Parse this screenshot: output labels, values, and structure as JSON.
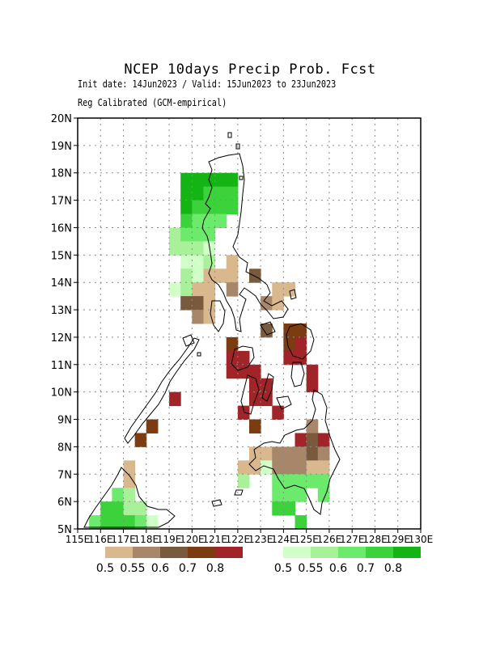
{
  "title": "NCEP 10days Precip Prob. Fcst",
  "subtitle1": "Init date: 14Jun2023 / Valid: 15Jun2023 to 23Jun2023",
  "subtitle2": "Reg Calibrated (GCM-empirical)",
  "axes": {
    "lon_ticks": [
      "115E",
      "116E",
      "117E",
      "118E",
      "119E",
      "120E",
      "121E",
      "122E",
      "123E",
      "124E",
      "125E",
      "126E",
      "127E",
      "128E",
      "129E",
      "130E"
    ],
    "lat_ticks": [
      "5N",
      "6N",
      "7N",
      "8N",
      "9N",
      "10N",
      "11N",
      "12N",
      "13N",
      "14N",
      "15N",
      "16N",
      "17N",
      "18N",
      "19N",
      "20N"
    ],
    "lon_range": [
      115,
      130
    ],
    "lat_range": [
      5,
      20
    ],
    "grid": true
  },
  "legend": {
    "dry": {
      "colors": [
        "#d8b88c",
        "#a8866a",
        "#7a5a3c",
        "#7a3c10",
        "#a02428"
      ],
      "labels": [
        "0.5",
        "0.55",
        "0.6",
        "0.7",
        "0.8"
      ]
    },
    "wet": {
      "colors": [
        "#d0ffc8",
        "#a8f09a",
        "#6cea6c",
        "#3cd23c",
        "#14b414"
      ],
      "labels": [
        "0.5",
        "0.55",
        "0.6",
        "0.7",
        "0.8"
      ]
    }
  },
  "cells": [
    {
      "lon": 119.75,
      "lat": 17.75,
      "c": "w5"
    },
    {
      "lon": 120.25,
      "lat": 17.75,
      "c": "w5"
    },
    {
      "lon": 120.75,
      "lat": 17.75,
      "c": "w5"
    },
    {
      "lon": 121.25,
      "lat": 17.75,
      "c": "w5"
    },
    {
      "lon": 121.75,
      "lat": 17.75,
      "c": "w5"
    },
    {
      "lon": 119.75,
      "lat": 17.25,
      "c": "w5"
    },
    {
      "lon": 120.25,
      "lat": 17.25,
      "c": "w5"
    },
    {
      "lon": 120.75,
      "lat": 17.25,
      "c": "w4"
    },
    {
      "lon": 121.25,
      "lat": 17.25,
      "c": "w4"
    },
    {
      "lon": 121.75,
      "lat": 17.25,
      "c": "w4"
    },
    {
      "lon": 119.75,
      "lat": 16.75,
      "c": "w5"
    },
    {
      "lon": 120.25,
      "lat": 16.75,
      "c": "w4"
    },
    {
      "lon": 120.75,
      "lat": 16.75,
      "c": "w4"
    },
    {
      "lon": 121.25,
      "lat": 16.75,
      "c": "w4"
    },
    {
      "lon": 121.75,
      "lat": 16.75,
      "c": "w4"
    },
    {
      "lon": 119.75,
      "lat": 16.25,
      "c": "w4"
    },
    {
      "lon": 120.25,
      "lat": 16.25,
      "c": "w3"
    },
    {
      "lon": 120.75,
      "lat": 16.25,
      "c": "w3"
    },
    {
      "lon": 121.25,
      "lat": 16.25,
      "c": "w3"
    },
    {
      "lon": 119.25,
      "lat": 15.75,
      "c": "w2"
    },
    {
      "lon": 119.75,
      "lat": 15.75,
      "c": "w3"
    },
    {
      "lon": 120.25,
      "lat": 15.75,
      "c": "w3"
    },
    {
      "lon": 120.75,
      "lat": 15.75,
      "c": "w3"
    },
    {
      "lon": 119.25,
      "lat": 15.25,
      "c": "w2"
    },
    {
      "lon": 119.75,
      "lat": 15.25,
      "c": "w2"
    },
    {
      "lon": 120.25,
      "lat": 15.25,
      "c": "w2"
    },
    {
      "lon": 120.75,
      "lat": 15.25,
      "c": "w1"
    },
    {
      "lon": 119.75,
      "lat": 14.75,
      "c": "w1"
    },
    {
      "lon": 120.25,
      "lat": 14.75,
      "c": "w1"
    },
    {
      "lon": 120.75,
      "lat": 14.75,
      "c": "w2"
    },
    {
      "lon": 121.75,
      "lat": 14.75,
      "c": "d1"
    },
    {
      "lon": 119.75,
      "lat": 14.25,
      "c": "w2"
    },
    {
      "lon": 120.25,
      "lat": 14.25,
      "c": "w1"
    },
    {
      "lon": 120.75,
      "lat": 14.25,
      "c": "d1"
    },
    {
      "lon": 121.25,
      "lat": 14.25,
      "c": "d1"
    },
    {
      "lon": 121.75,
      "lat": 14.25,
      "c": "d1"
    },
    {
      "lon": 122.75,
      "lat": 14.25,
      "c": "d3"
    },
    {
      "lon": 119.25,
      "lat": 13.75,
      "c": "w1"
    },
    {
      "lon": 119.75,
      "lat": 13.75,
      "c": "w2"
    },
    {
      "lon": 120.25,
      "lat": 13.75,
      "c": "d1"
    },
    {
      "lon": 120.75,
      "lat": 13.75,
      "c": "d1"
    },
    {
      "lon": 121.75,
      "lat": 13.75,
      "c": "d2"
    },
    {
      "lon": 123.75,
      "lat": 13.75,
      "c": "d1"
    },
    {
      "lon": 124.25,
      "lat": 13.75,
      "c": "d1"
    },
    {
      "lon": 119.75,
      "lat": 13.25,
      "c": "d3"
    },
    {
      "lon": 120.25,
      "lat": 13.25,
      "c": "d3"
    },
    {
      "lon": 120.75,
      "lat": 13.25,
      "c": "d1"
    },
    {
      "lon": 123.25,
      "lat": 13.25,
      "c": "d2"
    },
    {
      "lon": 123.75,
      "lat": 13.25,
      "c": "d1"
    },
    {
      "lon": 120.25,
      "lat": 12.75,
      "c": "d2"
    },
    {
      "lon": 120.75,
      "lat": 12.75,
      "c": "d1"
    },
    {
      "lon": 123.25,
      "lat": 12.25,
      "c": "d3"
    },
    {
      "lon": 124.25,
      "lat": 12.25,
      "c": "d4"
    },
    {
      "lon": 124.75,
      "lat": 12.25,
      "c": "d4"
    },
    {
      "lon": 121.75,
      "lat": 11.75,
      "c": "d4"
    },
    {
      "lon": 124.25,
      "lat": 11.75,
      "c": "d4"
    },
    {
      "lon": 124.75,
      "lat": 11.75,
      "c": "d5"
    },
    {
      "lon": 121.75,
      "lat": 11.25,
      "c": "d5"
    },
    {
      "lon": 122.25,
      "lat": 11.25,
      "c": "d5"
    },
    {
      "lon": 124.25,
      "lat": 11.25,
      "c": "d5"
    },
    {
      "lon": 124.75,
      "lat": 11.25,
      "c": "d5"
    },
    {
      "lon": 121.75,
      "lat": 10.75,
      "c": "d5"
    },
    {
      "lon": 122.25,
      "lat": 10.75,
      "c": "d5"
    },
    {
      "lon": 122.75,
      "lat": 10.75,
      "c": "d5"
    },
    {
      "lon": 125.25,
      "lat": 10.75,
      "c": "d5"
    },
    {
      "lon": 122.75,
      "lat": 10.25,
      "c": "d5"
    },
    {
      "lon": 123.25,
      "lat": 10.25,
      "c": "d5"
    },
    {
      "lon": 125.25,
      "lat": 10.25,
      "c": "d5"
    },
    {
      "lon": 119.25,
      "lat": 9.75,
      "c": "d5"
    },
    {
      "lon": 122.75,
      "lat": 9.75,
      "c": "d5"
    },
    {
      "lon": 123.25,
      "lat": 9.75,
      "c": "d5"
    },
    {
      "lon": 122.25,
      "lat": 9.25,
      "c": "d5"
    },
    {
      "lon": 123.75,
      "lat": 9.25,
      "c": "d5"
    },
    {
      "lon": 118.25,
      "lat": 8.75,
      "c": "d4"
    },
    {
      "lon": 122.75,
      "lat": 8.75,
      "c": "d4"
    },
    {
      "lon": 125.25,
      "lat": 8.75,
      "c": "d2"
    },
    {
      "lon": 117.75,
      "lat": 8.25,
      "c": "d4"
    },
    {
      "lon": 124.75,
      "lat": 8.25,
      "c": "d5"
    },
    {
      "lon": 125.25,
      "lat": 8.25,
      "c": "d3"
    },
    {
      "lon": 125.75,
      "lat": 8.25,
      "c": "d5"
    },
    {
      "lon": 122.75,
      "lat": 7.75,
      "c": "d1"
    },
    {
      "lon": 123.25,
      "lat": 7.75,
      "c": "d1"
    },
    {
      "lon": 123.75,
      "lat": 7.75,
      "c": "d2"
    },
    {
      "lon": 124.25,
      "lat": 7.75,
      "c": "d2"
    },
    {
      "lon": 124.75,
      "lat": 7.75,
      "c": "d2"
    },
    {
      "lon": 125.25,
      "lat": 7.75,
      "c": "d3"
    },
    {
      "lon": 125.75,
      "lat": 7.75,
      "c": "d2"
    },
    {
      "lon": 122.25,
      "lat": 7.25,
      "c": "d1"
    },
    {
      "lon": 122.75,
      "lat": 7.25,
      "c": "d1"
    },
    {
      "lon": 123.25,
      "lat": 7.25,
      "c": "w1"
    },
    {
      "lon": 123.75,
      "lat": 7.25,
      "c": "d2"
    },
    {
      "lon": 124.25,
      "lat": 7.25,
      "c": "d2"
    },
    {
      "lon": 124.75,
      "lat": 7.25,
      "c": "d2"
    },
    {
      "lon": 125.25,
      "lat": 7.25,
      "c": "d1"
    },
    {
      "lon": 125.75,
      "lat": 7.25,
      "c": "d1"
    },
    {
      "lon": 117.25,
      "lat": 7.25,
      "c": "d1"
    },
    {
      "lon": 122.25,
      "lat": 6.75,
      "c": "w2"
    },
    {
      "lon": 123.75,
      "lat": 6.75,
      "c": "w3"
    },
    {
      "lon": 124.25,
      "lat": 6.75,
      "c": "w3"
    },
    {
      "lon": 124.75,
      "lat": 6.75,
      "c": "w3"
    },
    {
      "lon": 125.25,
      "lat": 6.75,
      "c": "w3"
    },
    {
      "lon": 125.75,
      "lat": 6.75,
      "c": "w3"
    },
    {
      "lon": 117.25,
      "lat": 6.75,
      "c": "d1"
    },
    {
      "lon": 116.75,
      "lat": 6.25,
      "c": "w3"
    },
    {
      "lon": 117.25,
      "lat": 6.25,
      "c": "w2"
    },
    {
      "lon": 123.75,
      "lat": 6.25,
      "c": "w3"
    },
    {
      "lon": 124.25,
      "lat": 6.25,
      "c": "w3"
    },
    {
      "lon": 124.75,
      "lat": 6.25,
      "c": "w3"
    },
    {
      "lon": 125.75,
      "lat": 6.25,
      "c": "w3"
    },
    {
      "lon": 116.25,
      "lat": 5.75,
      "c": "w4"
    },
    {
      "lon": 116.75,
      "lat": 5.75,
      "c": "w4"
    },
    {
      "lon": 117.25,
      "lat": 5.75,
      "c": "w2"
    },
    {
      "lon": 117.75,
      "lat": 5.75,
      "c": "w2"
    },
    {
      "lon": 123.75,
      "lat": 5.75,
      "c": "w4"
    },
    {
      "lon": 124.25,
      "lat": 5.75,
      "c": "w4"
    },
    {
      "lon": 115.75,
      "lat": 5.25,
      "c": "w3"
    },
    {
      "lon": 116.25,
      "lat": 5.25,
      "c": "w4"
    },
    {
      "lon": 116.75,
      "lat": 5.25,
      "c": "w4"
    },
    {
      "lon": 117.25,
      "lat": 5.25,
      "c": "w4"
    },
    {
      "lon": 117.75,
      "lat": 5.25,
      "c": "w3"
    },
    {
      "lon": 118.25,
      "lat": 5.25,
      "c": "w1"
    },
    {
      "lon": 124.75,
      "lat": 5.25,
      "c": "w4"
    }
  ]
}
